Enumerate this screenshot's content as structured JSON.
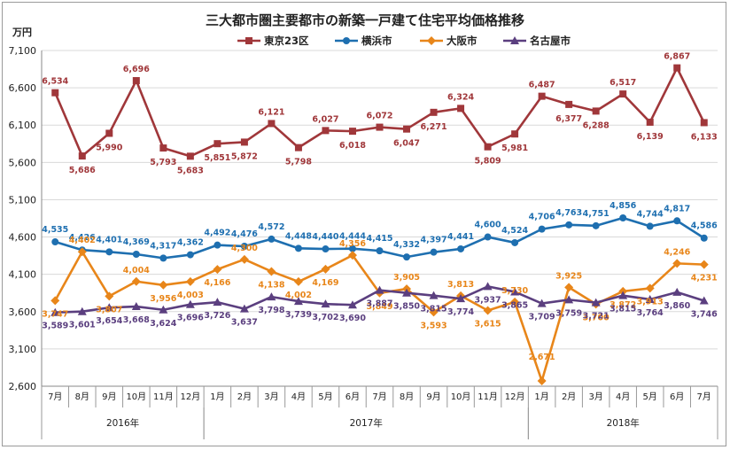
{
  "chart_data": {
    "type": "line",
    "title": "三大都市圏主要都市の新築一戸建て住宅平均価格推移",
    "y_unit": "万円",
    "ylim": [
      2600,
      7100
    ],
    "yticks": [
      "7,100",
      "6,600",
      "6,100",
      "5,600",
      "5,100",
      "4,600",
      "4,100",
      "3,600",
      "3,100",
      "2,600"
    ],
    "ytick_values": [
      7100,
      6600,
      6100,
      5600,
      5100,
      4600,
      4100,
      3600,
      3100,
      2600
    ],
    "categories": [
      "7月",
      "8月",
      "9月",
      "10月",
      "11月",
      "12月",
      "1月",
      "2月",
      "3月",
      "4月",
      "5月",
      "6月",
      "7月",
      "8月",
      "9月",
      "10月",
      "11月",
      "12月",
      "1月",
      "2月",
      "3月",
      "4月",
      "5月",
      "6月",
      "7月"
    ],
    "years": [
      {
        "label": "2016年",
        "start": 0,
        "end": 5
      },
      {
        "label": "2017年",
        "start": 6,
        "end": 17
      },
      {
        "label": "2018年",
        "start": 18,
        "end": 24
      }
    ],
    "grid": true,
    "legend_position": "top",
    "series": [
      {
        "name": "東京23区",
        "color": "#a0373a",
        "marker": "square",
        "values": [
          6534,
          5686,
          5990,
          6696,
          5793,
          5683,
          5851,
          5872,
          6121,
          5798,
          6027,
          6018,
          6072,
          6047,
          6271,
          6324,
          5809,
          5981,
          6487,
          6377,
          6288,
          6517,
          6139,
          6867,
          6133
        ],
        "labels": [
          "6,534",
          "5,686",
          "5,990",
          "6,696",
          "5,793",
          "5,683",
          "5,851",
          "5,872",
          "6,121",
          "5,798",
          "6,027",
          "6,018",
          "6,072",
          "6,047",
          "6,271",
          "6,324",
          "5,809",
          "5,981",
          "6,487",
          "6,377",
          "6,288",
          "6,517",
          "6,139",
          "6,867",
          "6,133"
        ]
      },
      {
        "name": "横浜市",
        "color": "#1e6fb0",
        "marker": "circle",
        "values": [
          4535,
          4426,
          4401,
          4369,
          4317,
          4362,
          4492,
          4476,
          4572,
          4448,
          4440,
          4444,
          4415,
          4332,
          4397,
          4441,
          4600,
          4524,
          4706,
          4763,
          4751,
          4856,
          4744,
          4817,
          4586
        ],
        "labels": [
          "4,535",
          "4,426",
          "4,401",
          "4,369",
          "4,317",
          "4,362",
          "4,492",
          "4,476",
          "4,572",
          "4,448",
          "4,440",
          "4,444",
          "4,415",
          "4,332",
          "4,397",
          "4,441",
          "4,600",
          "4,524",
          "4,706",
          "4,763",
          "4,751",
          "4,856",
          "4,744",
          "4,817",
          "4,586"
        ]
      },
      {
        "name": "大阪市",
        "color": "#e8861a",
        "marker": "diamond",
        "values": [
          3747,
          4402,
          3807,
          4004,
          3956,
          4003,
          4166,
          4300,
          4138,
          4002,
          4169,
          4356,
          3849,
          3905,
          3593,
          3813,
          3615,
          3730,
          2671,
          3925,
          3700,
          3872,
          3913,
          4246,
          4231
        ],
        "labels": [
          "3,747",
          "4,402",
          "3,807",
          "4,004",
          "3,956",
          "4,003",
          "4,166",
          "4,300",
          "4,138",
          "4,002",
          "4,169",
          "4,356",
          "3,849",
          "3,905",
          "3,593",
          "3,813",
          "3,615",
          "3,730",
          "2,671",
          "3,925",
          "3,700",
          "3,872",
          "3,913",
          "4,246",
          "4,231"
        ]
      },
      {
        "name": "名古屋市",
        "color": "#5b3f7f",
        "marker": "triangle",
        "values": [
          3589,
          3601,
          3654,
          3668,
          3624,
          3696,
          3726,
          3637,
          3798,
          3739,
          3702,
          3690,
          3887,
          3850,
          3815,
          3774,
          3937,
          3865,
          3709,
          3759,
          3721,
          3815,
          3764,
          3860,
          3746
        ],
        "labels": [
          "3,589",
          "3,601",
          "3,654",
          "3,668",
          "3,624",
          "3,696",
          "3,726",
          "3,637",
          "3,798",
          "3,739",
          "3,702",
          "3,690",
          "3,887",
          "3,850",
          "3,815",
          "3,774",
          "3,937",
          "3,865",
          "3,709",
          "3,759",
          "3,721",
          "3,815",
          "3,764",
          "3,860",
          "3,746"
        ]
      }
    ]
  }
}
